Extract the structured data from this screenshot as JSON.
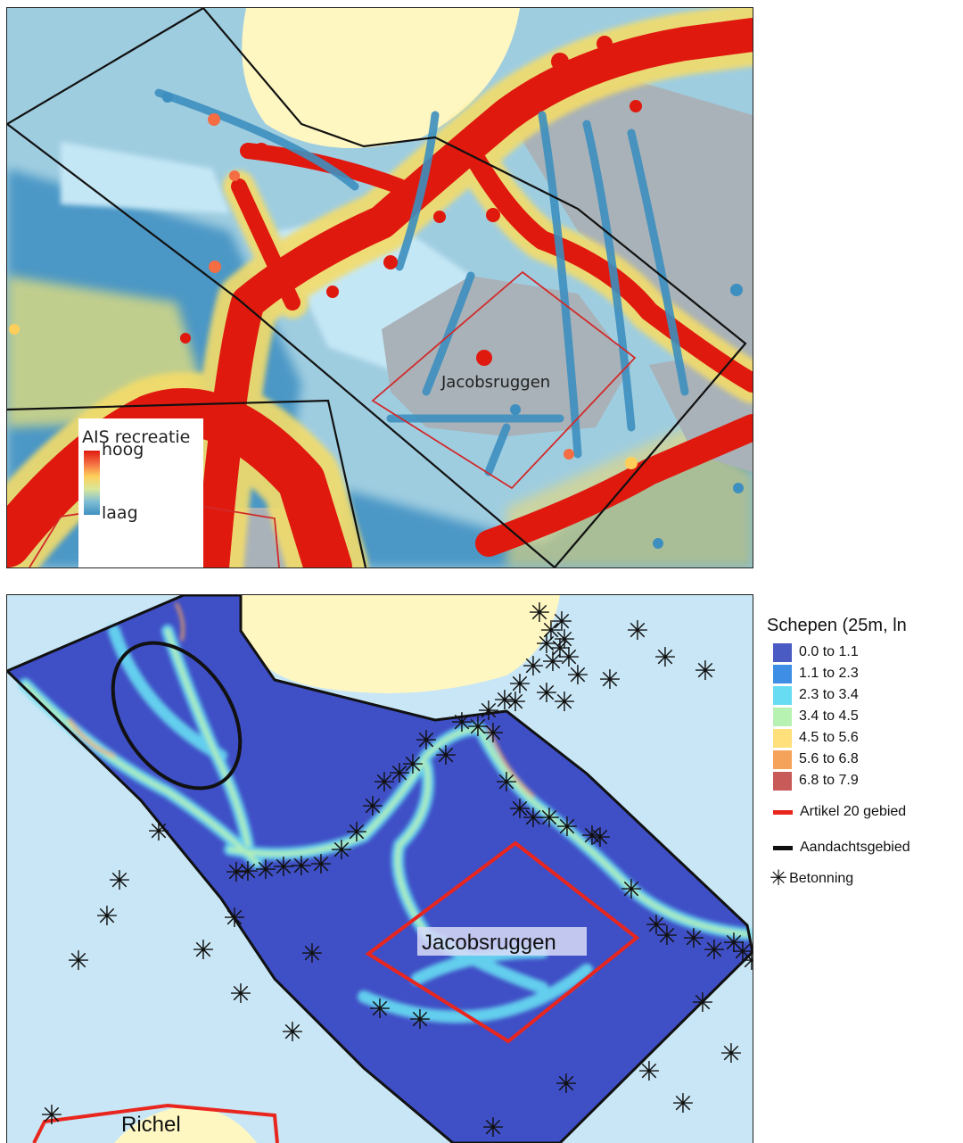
{
  "header_fragment": "",
  "top_map": {
    "area_label": "Jacobsruggen",
    "legend": {
      "title": "AIS recreatie",
      "high": "hoog",
      "low": "laag",
      "colors": [
        "#e0190f",
        "#f46d43",
        "#fdcf5a",
        "#d8e79a",
        "#7ebdd4",
        "#3e8fc2"
      ]
    }
  },
  "bottom_map": {
    "area_label": "Jacobsruggen",
    "area_label_2": "Richel",
    "legend": {
      "title": "Schepen (25m, ln",
      "classes": [
        {
          "label": "0.0 to 1.1",
          "color": "#4a5bc4"
        },
        {
          "label": "1.1 to 2.3",
          "color": "#3e8ee6"
        },
        {
          "label": "2.3 to 3.4",
          "color": "#67dcf2"
        },
        {
          "label": "3.4 to 4.5",
          "color": "#b8f2b2"
        },
        {
          "label": "4.5 to 5.6",
          "color": "#ffe07a"
        },
        {
          "label": "5.6 to 6.8",
          "color": "#f5a35a"
        },
        {
          "label": "6.8 to 7.9",
          "color": "#c95a5a"
        }
      ],
      "lines": [
        {
          "label": "Artikel 20 gebied",
          "color": "#e8261e"
        },
        {
          "label": "Aandachtsgebied",
          "color": "#111111"
        }
      ],
      "marker": {
        "label": "Betonning",
        "icon": "asterisk-icon"
      }
    }
  }
}
